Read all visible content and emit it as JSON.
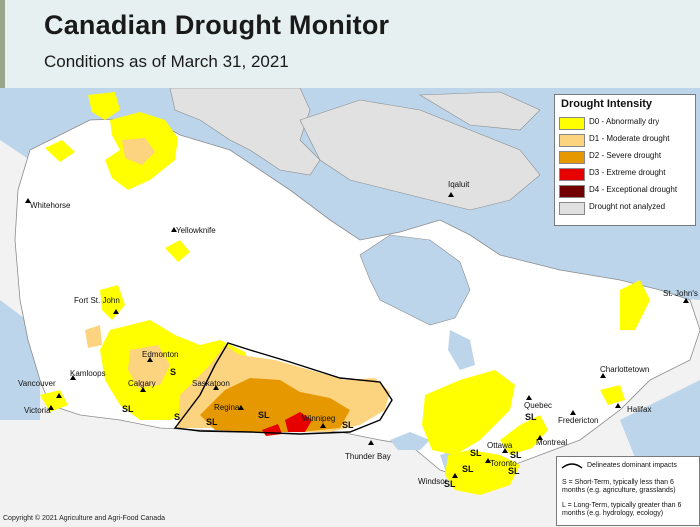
{
  "header": {
    "title": "Canadian Drought Monitor",
    "subtitle": "Conditions as of March 31, 2021"
  },
  "legend": {
    "title": "Drought Intensity",
    "items": [
      {
        "label": "D0 - Abnormally dry",
        "color": "#ffff00"
      },
      {
        "label": "D1 - Moderate drought",
        "color": "#fcd37f"
      },
      {
        "label": "D2 - Severe drought",
        "color": "#e69800"
      },
      {
        "label": "D3 - Extreme drought",
        "color": "#e60000"
      },
      {
        "label": "D4 - Exceptional drought",
        "color": "#730000"
      },
      {
        "label": "Drought not analyzed",
        "color": "#e1e1e1"
      }
    ]
  },
  "impact_notes": {
    "line_label": "Delineates dominant impacts",
    "short_term": "S = Short-Term, typically less than 6 months (e.g. agriculture, grasslands)",
    "long_term": "L = Long-Term, typically greater than 6 months (e.g. hydrology, ecology)"
  },
  "cities": {
    "whitehorse": "Whitehorse",
    "yellowknife": "Yellowknife",
    "iqaluit": "Iqaluit",
    "fort_st_john": "Fort St. John",
    "edmonton": "Edmonton",
    "calgary": "Calgary",
    "kamloops": "Kamloops",
    "vancouver": "Vancouver",
    "victoria": "Victoria",
    "saskatoon": "Saskatoon",
    "regina": "Regina",
    "winnipeg": "Winnipeg",
    "thunder_bay": "Thunder Bay",
    "quebec": "Quebec",
    "montreal": "Montreal",
    "ottawa": "Ottawa",
    "toronto": "Toronto",
    "windsor": "Windsor",
    "fredericton": "Fredericton",
    "charlottetown": "Charlottetown",
    "halifax": "Halifax",
    "st_johns": "St. John's"
  },
  "impact_labels": {
    "ab_s": "S",
    "bc_sl": "SL",
    "ab_s2": "S",
    "sk_sl": "SL",
    "sk_sl2": "SL",
    "mb_sl": "SL",
    "on_sl": "SL",
    "qc_sl": "SL",
    "on_sl2": "SL",
    "on_sl3": "SL",
    "on_sl4": "SL",
    "on_sl5": "SL"
  },
  "copyright": "Copyright © 2021 Agriculture and Agri-Food Canada"
}
